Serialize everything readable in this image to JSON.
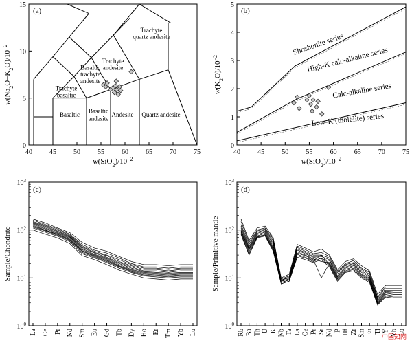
{
  "watermark": "中国知网",
  "chart_data": [
    {
      "id": "a",
      "type": "scatter",
      "panel_label": "(a)",
      "xlabel": "w(SiO2)/10−2",
      "ylabel": "w(Na2O+K2O)/10−2",
      "xlim": [
        40,
        75
      ],
      "ylim": [
        0,
        15
      ],
      "xticks": [
        40,
        45,
        50,
        55,
        60,
        65,
        70,
        75
      ],
      "yticks": [
        0,
        5,
        10,
        15
      ],
      "fields": [
        {
          "label": "Basaltic",
          "x": 48.5,
          "y": 3.0
        },
        {
          "label": "Basaltic",
          "x": 54.5,
          "y": 3.4
        },
        {
          "label": "andesite",
          "x": 54.5,
          "y": 2.6
        },
        {
          "label": "Andesite",
          "x": 59.5,
          "y": 3.0
        },
        {
          "label": "Quartz andesite",
          "x": 67.5,
          "y": 3.0
        },
        {
          "label": "Trachyte",
          "x": 47.8,
          "y": 5.8
        },
        {
          "label": "basaltic",
          "x": 47.8,
          "y": 5.1
        },
        {
          "label": "Basaltic",
          "x": 52.8,
          "y": 8.0
        },
        {
          "label": "trachyte",
          "x": 52.8,
          "y": 7.3
        },
        {
          "label": "andesite",
          "x": 52.8,
          "y": 6.6
        },
        {
          "label": "Trachyte",
          "x": 57.5,
          "y": 8.7
        },
        {
          "label": "andesite",
          "x": 57.5,
          "y": 8.0
        },
        {
          "label": "Trachyte",
          "x": 65.5,
          "y": 12.0
        },
        {
          "label": "quartz andesite",
          "x": 65.5,
          "y": 11.3
        }
      ],
      "samples": [
        {
          "x": 55.5,
          "y": 6.4
        },
        {
          "x": 56.0,
          "y": 6.2
        },
        {
          "x": 56.3,
          "y": 6.6
        },
        {
          "x": 57.0,
          "y": 5.9
        },
        {
          "x": 57.5,
          "y": 6.1
        },
        {
          "x": 57.8,
          "y": 5.6
        },
        {
          "x": 58.0,
          "y": 6.3
        },
        {
          "x": 58.3,
          "y": 5.9
        },
        {
          "x": 58.6,
          "y": 5.4
        },
        {
          "x": 58.9,
          "y": 6.2
        },
        {
          "x": 59.1,
          "y": 5.8
        },
        {
          "x": 58.2,
          "y": 6.8
        },
        {
          "x": 61.3,
          "y": 7.8
        }
      ]
    },
    {
      "id": "b",
      "type": "scatter",
      "panel_label": "(b)",
      "xlabel": "w(SiO2)/10−2",
      "ylabel": "w(K2O)/10−2",
      "xlim": [
        40,
        75
      ],
      "ylim": [
        0,
        5
      ],
      "xticks": [
        40,
        45,
        50,
        55,
        60,
        65,
        70,
        75
      ],
      "yticks": [
        0,
        1,
        2,
        3,
        4,
        5
      ],
      "series_labels": [
        {
          "label": "Shoshonite series",
          "x": 57.0,
          "y": 3.5,
          "angle": -19
        },
        {
          "label": "High-K calc-alkaline series",
          "x": 63.0,
          "y": 2.95,
          "angle": -14
        },
        {
          "label": "Calc-alkaline series",
          "x": 66.0,
          "y": 1.85,
          "angle": -10
        },
        {
          "label": "Low-K (tholeiite) series",
          "x": 63.0,
          "y": 0.82,
          "angle": -6
        }
      ],
      "samples": [
        {
          "x": 51.8,
          "y": 1.5
        },
        {
          "x": 52.5,
          "y": 1.7
        },
        {
          "x": 52.9,
          "y": 1.3
        },
        {
          "x": 54.5,
          "y": 1.6
        },
        {
          "x": 55.0,
          "y": 1.75
        },
        {
          "x": 55.3,
          "y": 1.45
        },
        {
          "x": 55.6,
          "y": 1.2
        },
        {
          "x": 55.8,
          "y": 1.6
        },
        {
          "x": 56.5,
          "y": 1.35
        },
        {
          "x": 56.8,
          "y": 1.55
        },
        {
          "x": 57.6,
          "y": 1.1
        },
        {
          "x": 59.0,
          "y": 2.05
        }
      ]
    },
    {
      "id": "c",
      "type": "line",
      "panel_label": "(c)",
      "ylabel": "Sample/Chondrite",
      "yscale": "log",
      "ylim": [
        1,
        1000
      ],
      "yticks": [
        1,
        10,
        100,
        1000
      ],
      "ytick_labels": [
        "10^0",
        "10^1",
        "10^2",
        "10^3"
      ],
      "categories": [
        "La",
        "Ce",
        "Pr",
        "Nd",
        "Sm",
        "Eu",
        "Gd",
        "Tb",
        "Dy",
        "Ho",
        "Er",
        "Tm",
        "Yb",
        "Lu"
      ],
      "series": [
        {
          "values": [
            170,
            140,
            110,
            88,
            55,
            42,
            36,
            28,
            22,
            19,
            19,
            18,
            19,
            19
          ]
        },
        {
          "values": [
            160,
            130,
            105,
            82,
            50,
            38,
            33,
            26,
            20,
            17,
            17,
            16,
            17,
            17
          ]
        },
        {
          "values": [
            150,
            125,
            100,
            78,
            47,
            36,
            30,
            24,
            19,
            16,
            16,
            15,
            16,
            16
          ]
        },
        {
          "values": [
            145,
            120,
            95,
            75,
            45,
            34,
            29,
            22,
            18,
            15,
            15,
            14,
            15,
            15
          ]
        },
        {
          "values": [
            140,
            115,
            92,
            72,
            43,
            33,
            27,
            21,
            17,
            14,
            14,
            13,
            14,
            14
          ]
        },
        {
          "values": [
            135,
            110,
            88,
            70,
            41,
            31,
            26,
            20,
            16,
            13.5,
            13,
            12.5,
            13,
            13
          ]
        },
        {
          "values": [
            130,
            105,
            85,
            67,
            39,
            30,
            25,
            19,
            15,
            13,
            12.5,
            12,
            12.5,
            12.5
          ]
        },
        {
          "values": [
            125,
            100,
            82,
            64,
            37,
            29,
            24,
            18,
            14.5,
            12.5,
            12,
            11.5,
            12,
            12
          ]
        },
        {
          "values": [
            120,
            98,
            80,
            62,
            36,
            28,
            23,
            17.5,
            14,
            12,
            11.5,
            11,
            11.5,
            11.5
          ]
        },
        {
          "values": [
            115,
            95,
            77,
            60,
            34,
            27,
            22,
            17,
            13.5,
            11.5,
            11,
            10.5,
            11,
            11
          ]
        },
        {
          "values": [
            110,
            90,
            74,
            57,
            32,
            26,
            21,
            16,
            13,
            11,
            10.5,
            10,
            10.5,
            10.5
          ]
        },
        {
          "values": [
            100,
            82,
            68,
            52,
            29,
            24,
            19,
            14.5,
            12,
            10,
            9.5,
            9,
            9.5,
            9.5
          ]
        }
      ]
    },
    {
      "id": "d",
      "type": "line",
      "panel_label": "(d)",
      "ylabel": "Sample/Primitive mantle",
      "yscale": "log",
      "ylim": [
        1,
        1000
      ],
      "yticks": [
        1,
        10,
        100,
        1000
      ],
      "ytick_labels": [
        "10^0",
        "10^1",
        "10^2",
        "10^3"
      ],
      "categories": [
        "Rb",
        "Ba",
        "Th",
        "U",
        "K",
        "Nb",
        "Ta",
        "La",
        "Ce",
        "Pr",
        "Sr",
        "Nd",
        "P",
        "Hf",
        "Zr",
        "Sm",
        "Eu",
        "Ti",
        "Y",
        "Yb",
        "Lu"
      ],
      "series": [
        {
          "values": [
            170,
            60,
            110,
            120,
            70,
            10,
            12,
            50,
            42,
            35,
            40,
            30,
            15,
            22,
            25,
            18,
            14,
            4.5,
            7,
            7,
            7
          ]
        },
        {
          "values": [
            150,
            55,
            100,
            110,
            65,
            9.5,
            11,
            46,
            39,
            32,
            34,
            28,
            14,
            20,
            23,
            16,
            13,
            4,
            6.5,
            6.5,
            6.5
          ]
        },
        {
          "values": [
            130,
            50,
            95,
            105,
            60,
            9,
            10.5,
            43,
            36,
            30,
            30,
            26,
            13,
            19,
            21,
            15,
            12,
            3.8,
            6,
            6,
            6
          ]
        },
        {
          "values": [
            120,
            45,
            90,
            100,
            55,
            9,
            10,
            40,
            34,
            28,
            28,
            24,
            12,
            18,
            20,
            14,
            11,
            3.6,
            5.5,
            5.5,
            5.5
          ]
        },
        {
          "values": [
            110,
            42,
            85,
            95,
            50,
            8.5,
            9.5,
            38,
            32,
            27,
            25,
            23,
            11,
            17,
            19,
            13,
            10.5,
            3.4,
            5.2,
            5,
            5
          ]
        },
        {
          "values": [
            100,
            40,
            80,
            90,
            45,
            8.5,
            9.5,
            35,
            30,
            25,
            22,
            21,
            10.5,
            16,
            18,
            12,
            10,
            3.2,
            5,
            4.8,
            4.8
          ]
        },
        {
          "values": [
            95,
            38,
            75,
            85,
            42,
            8,
            9,
            33,
            29,
            24,
            10,
            20,
            10,
            15,
            17,
            11.5,
            9.5,
            3,
            4.8,
            4.5,
            4.5
          ]
        },
        {
          "values": [
            90,
            35,
            72,
            80,
            40,
            8,
            9,
            31,
            27,
            23,
            30,
            19,
            9.5,
            14,
            16,
            11,
            9,
            2.9,
            4.5,
            4.2,
            4.2
          ]
        },
        {
          "values": [
            85,
            32,
            70,
            78,
            38,
            7.5,
            8.5,
            29,
            26,
            22,
            26,
            18,
            9,
            13.5,
            15,
            10.5,
            8.5,
            2.8,
            4.2,
            4,
            4
          ]
        },
        {
          "values": [
            80,
            30,
            68,
            75,
            36,
            7.5,
            8.5,
            27,
            24,
            21,
            24,
            17,
            8.5,
            13,
            14,
            10,
            8,
            2.7,
            4,
            3.8,
            3.8
          ]
        }
      ]
    }
  ]
}
